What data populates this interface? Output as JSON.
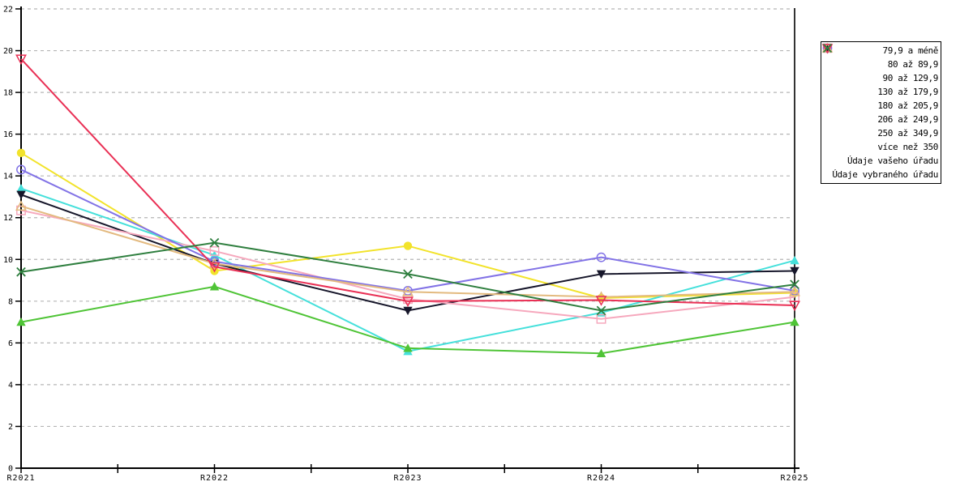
{
  "chart_data": {
    "type": "line",
    "title": "",
    "xlabel": "",
    "ylabel": "",
    "x_categories": [
      "R2021",
      "R2022",
      "R2023",
      "R2024",
      "R2025"
    ],
    "ylim": [
      0,
      22
    ],
    "ytick_step": 2,
    "ytick_labels": [
      "0",
      "2",
      "4",
      "6",
      "8",
      "10",
      "12",
      "14",
      "16",
      "18",
      "20",
      "22"
    ],
    "grid": "horizontal-dashed",
    "grid_color": "#b5b5b5",
    "axis_color": "#000000",
    "legend_position": "outside-top-right",
    "series": [
      {
        "name": "79,9 a méně",
        "color": "#9932ab",
        "marker": "diamond-filled",
        "values": [
          null,
          null,
          null,
          null,
          null
        ]
      },
      {
        "name": "80 až 89,9",
        "color": "#f2e32b",
        "marker": "circle-filled",
        "values": [
          15.1,
          9.45,
          10.65,
          8.15,
          8.4
        ]
      },
      {
        "name": "90 až 129,9",
        "color": "#45e0db",
        "marker": "triangle-up-filled",
        "values": [
          13.4,
          10.2,
          5.6,
          7.45,
          9.95
        ]
      },
      {
        "name": "130 až 179,9",
        "color": "#4fc436",
        "marker": "triangle-up-filled",
        "values": [
          7.0,
          8.7,
          5.75,
          5.5,
          7.0
        ]
      },
      {
        "name": "180 až 205,9",
        "color": "#16162a",
        "marker": "triangle-down-filled",
        "values": [
          13.1,
          9.8,
          7.55,
          9.3,
          9.45
        ]
      },
      {
        "name": "206 až 249,9",
        "color": "#f6a8bd",
        "marker": "square-open",
        "values": [
          12.35,
          10.4,
          8.1,
          7.15,
          8.2
        ]
      },
      {
        "name": "250 až 349,9",
        "color": "#8273e6",
        "marker": "circle-open",
        "values": [
          14.3,
          9.9,
          8.5,
          10.1,
          8.5
        ]
      },
      {
        "name": "více než 350",
        "color": "#e3ba7f",
        "marker": "triangle-up-open",
        "values": [
          12.55,
          9.8,
          8.45,
          8.2,
          8.45
        ]
      },
      {
        "name": "Údaje vašeho úřadu",
        "color": "#e93055",
        "marker": "triangle-down-open",
        "values": [
          19.6,
          9.65,
          8.0,
          8.05,
          7.8
        ]
      },
      {
        "name": "Údaje vybraného úřadu",
        "color": "#2f7f3f",
        "marker": "x-cross",
        "values": [
          9.4,
          10.8,
          9.3,
          7.55,
          8.8
        ]
      }
    ]
  }
}
